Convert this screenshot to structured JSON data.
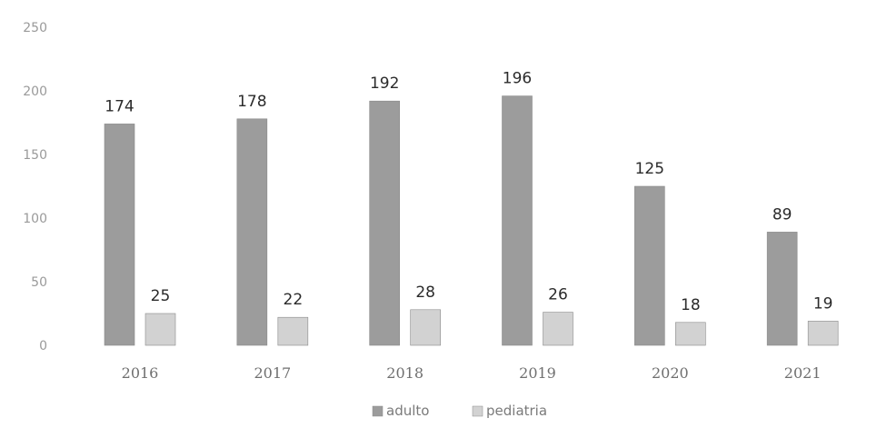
{
  "chart_data": {
    "type": "bar",
    "categories": [
      "2016",
      "2017",
      "2018",
      "2019",
      "2020",
      "2021"
    ],
    "series": [
      {
        "name": "adulto",
        "values": [
          174,
          178,
          192,
          196,
          125,
          89
        ],
        "color": "#9c9c9c"
      },
      {
        "name": "pediatria",
        "values": [
          25,
          22,
          28,
          26,
          18,
          19
        ],
        "color": "#d2d2d2"
      }
    ],
    "ylim": [
      0,
      250
    ],
    "yticks": [
      {
        "value": 0,
        "label": "0"
      },
      {
        "value": 50,
        "label": "50"
      },
      {
        "value": 100,
        "label": "100"
      },
      {
        "value": 150,
        "label": "150"
      },
      {
        "value": 200,
        "label": "200"
      },
      {
        "value": 250,
        "label": "250"
      }
    ],
    "grid": false,
    "legend_position": "bottom",
    "title": "",
    "xlabel": "",
    "ylabel": ""
  }
}
